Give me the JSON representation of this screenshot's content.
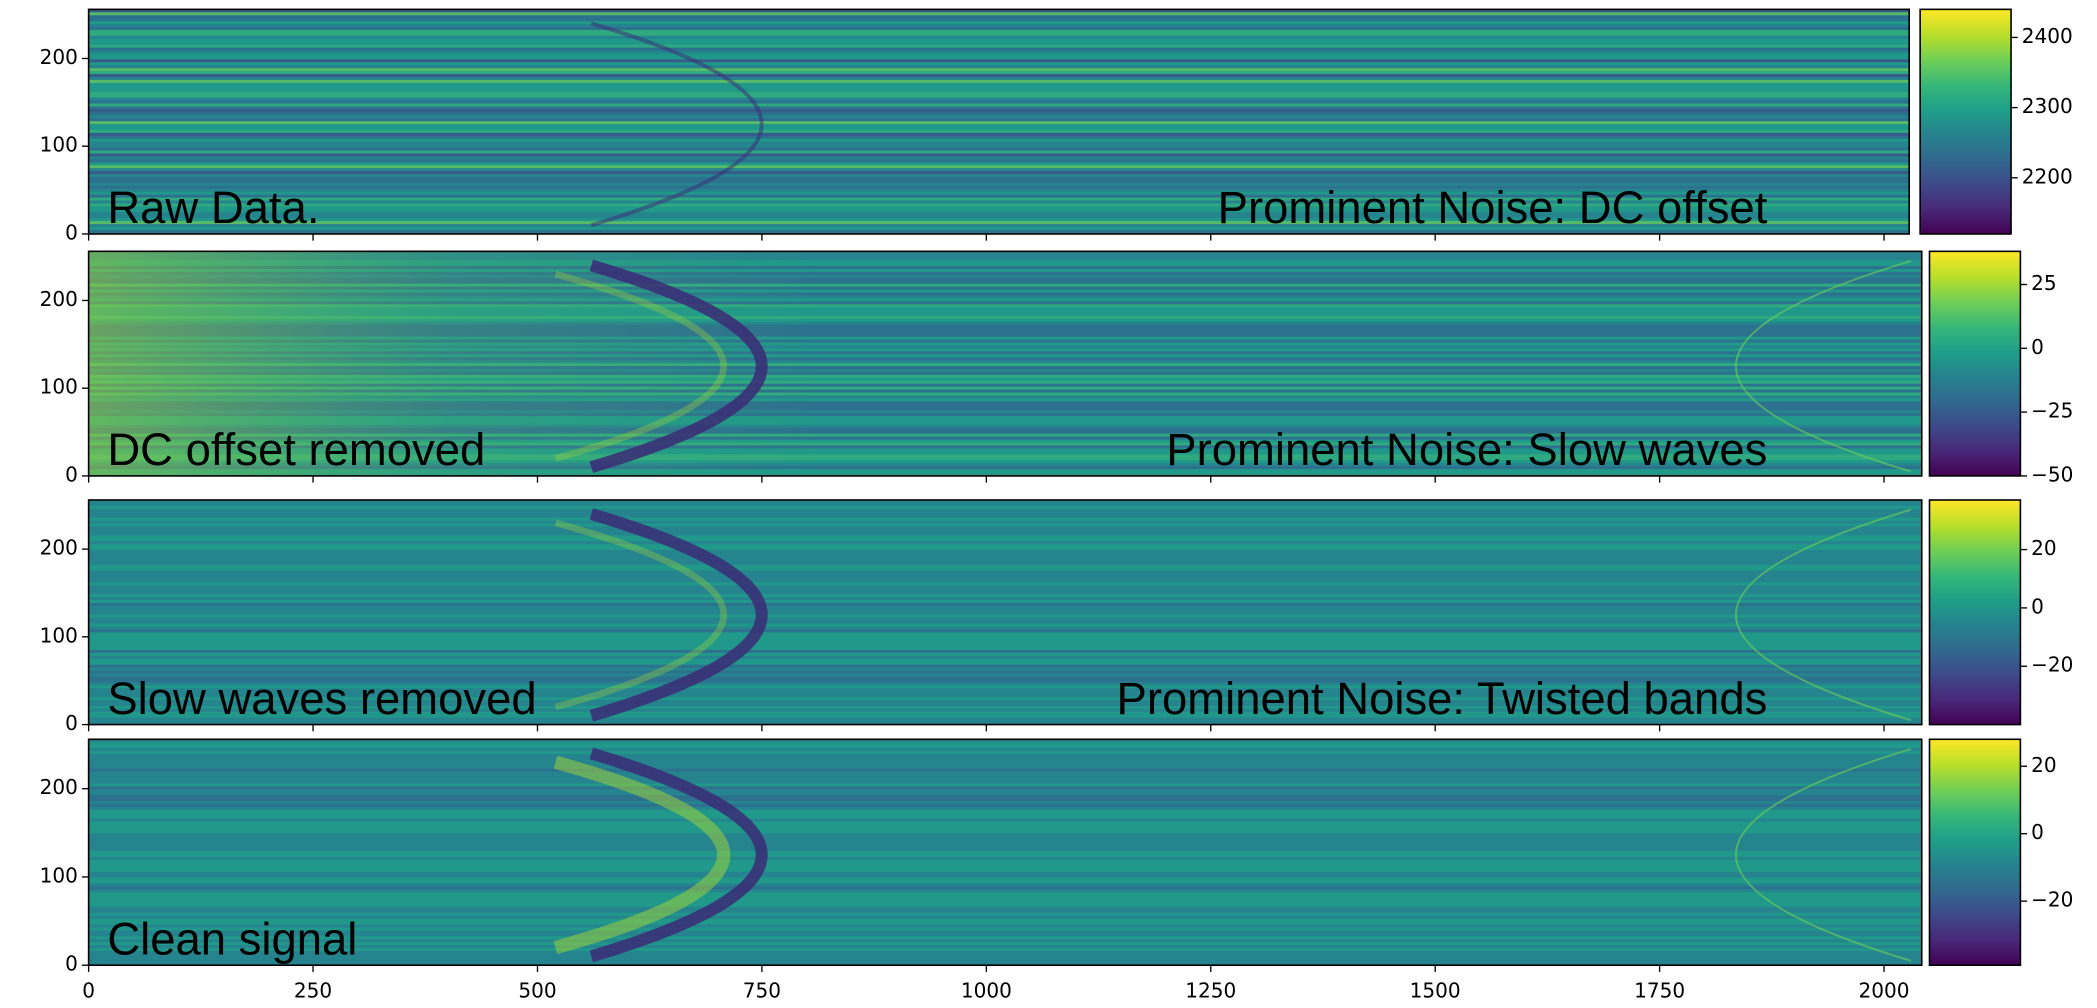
{
  "chart_data": [
    {
      "type": "heatmap",
      "colormap": "viridis",
      "annotations": [
        "Raw Data.",
        "Prominent Noise: DC offset"
      ],
      "xlim": [
        0,
        2028
      ],
      "xticks": [
        0,
        250,
        500,
        750,
        1000,
        1250,
        1500,
        1750,
        2000
      ],
      "show_xtick_labels": false,
      "ylim": [
        0,
        256
      ],
      "yticks": [
        0,
        100,
        200
      ],
      "clim": [
        2120,
        2440
      ],
      "cticks": [
        2200,
        2300,
        2400
      ]
    },
    {
      "type": "heatmap",
      "colormap": "viridis",
      "annotations": [
        "DC offset removed",
        "Prominent Noise: Slow waves"
      ],
      "xlim": [
        0,
        2042
      ],
      "xticks": [
        0,
        250,
        500,
        750,
        1000,
        1250,
        1500,
        1750,
        2000
      ],
      "show_xtick_labels": false,
      "ylim": [
        0,
        256
      ],
      "yticks": [
        0,
        100,
        200
      ],
      "clim": [
        -50,
        38
      ],
      "cticks": [
        {
          "value": -50,
          "label": "−50"
        },
        {
          "value": -25,
          "label": "−25"
        },
        0,
        25
      ]
    },
    {
      "type": "heatmap",
      "colormap": "viridis",
      "annotations": [
        "Slow waves removed",
        "Prominent Noise: Twisted bands"
      ],
      "xlim": [
        0,
        2042
      ],
      "xticks": [
        0,
        250,
        500,
        750,
        1000,
        1250,
        1500,
        1750,
        2000
      ],
      "show_xtick_labels": false,
      "ylim": [
        0,
        256
      ],
      "yticks": [
        0,
        100,
        200
      ],
      "clim": [
        -40,
        37
      ],
      "cticks": [
        {
          "value": -20,
          "label": "−20"
        },
        0,
        20
      ]
    },
    {
      "type": "heatmap",
      "colormap": "viridis",
      "annotations": [
        "Clean signal"
      ],
      "xlim": [
        0,
        2042
      ],
      "xticks": [
        0,
        250,
        500,
        750,
        1000,
        1250,
        1500,
        1750,
        2000
      ],
      "show_xtick_labels": true,
      "ylim": [
        0,
        256
      ],
      "yticks": [
        0,
        100,
        200
      ],
      "clim": [
        -39,
        28
      ],
      "cticks": [
        {
          "value": -20,
          "label": "−20"
        },
        0,
        20
      ]
    }
  ]
}
